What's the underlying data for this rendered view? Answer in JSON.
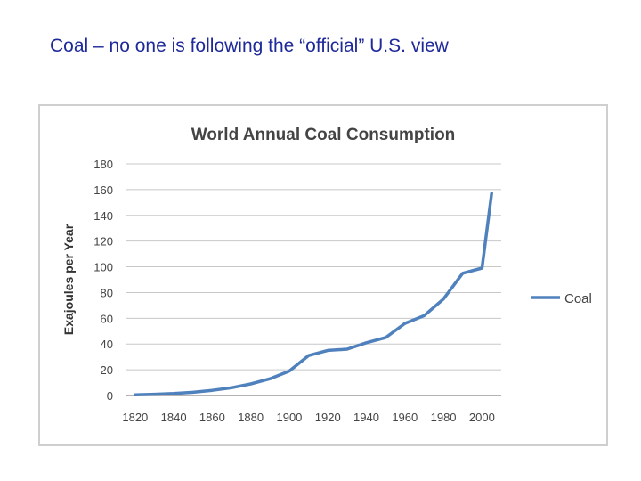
{
  "slide": {
    "title": "Coal – no one is following the “official” U.S. view"
  },
  "chart_data": {
    "type": "line",
    "title": "World Annual Coal Consumption",
    "xlabel": "",
    "ylabel": "Exajoules per Year",
    "xlim": [
      1815,
      2010
    ],
    "ylim": [
      0,
      180
    ],
    "x_ticks": [
      1820,
      1840,
      1860,
      1880,
      1900,
      1920,
      1940,
      1960,
      1980,
      2000
    ],
    "y_ticks": [
      0,
      20,
      40,
      60,
      80,
      100,
      120,
      140,
      160,
      180
    ],
    "grid": true,
    "legend": "right",
    "series": [
      {
        "name": "Coal",
        "color": "#4f81bd",
        "x": [
          1820,
          1830,
          1840,
          1850,
          1860,
          1870,
          1880,
          1890,
          1900,
          1910,
          1920,
          1930,
          1940,
          1950,
          1960,
          1970,
          1980,
          1990,
          2000,
          2005
        ],
        "y": [
          0.5,
          1,
          1.5,
          2.5,
          4,
          6,
          9,
          13,
          19,
          31,
          35,
          36,
          41,
          45,
          56,
          62,
          75,
          95,
          99,
          157
        ]
      }
    ]
  }
}
